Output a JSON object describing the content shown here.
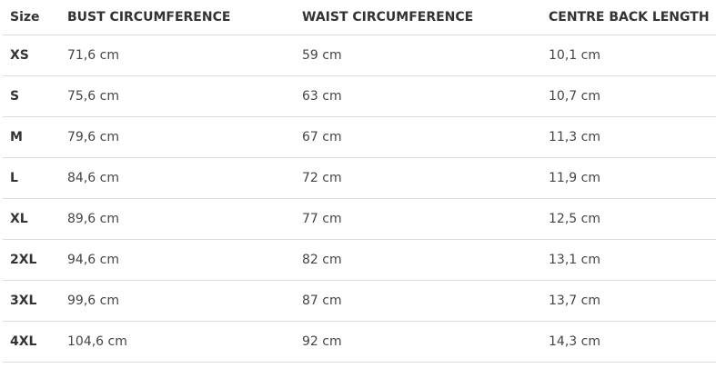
{
  "table": {
    "headers": [
      "Size",
      "BUST CIRCUMFERENCE",
      "WAIST CIRCUMFERENCE",
      "CENTRE BACK LENGTH"
    ],
    "rows": [
      [
        "XS",
        "71,6 cm",
        "59 cm",
        "10,1 cm"
      ],
      [
        "S",
        "75,6 cm",
        "63 cm",
        "10,7 cm"
      ],
      [
        "M",
        "79,6 cm",
        "67 cm",
        "11,3 cm"
      ],
      [
        "L",
        "84,6 cm",
        "72 cm",
        "11,9 cm"
      ],
      [
        "XL",
        "89,6 cm",
        "77 cm",
        "12,5 cm"
      ],
      [
        "2XL",
        "94,6 cm",
        "82 cm",
        "13,1 cm"
      ],
      [
        "3XL",
        "99,6 cm",
        "87 cm",
        "13,7 cm"
      ],
      [
        "4XL",
        "104,6 cm",
        "92 cm",
        "14,3 cm"
      ]
    ]
  }
}
